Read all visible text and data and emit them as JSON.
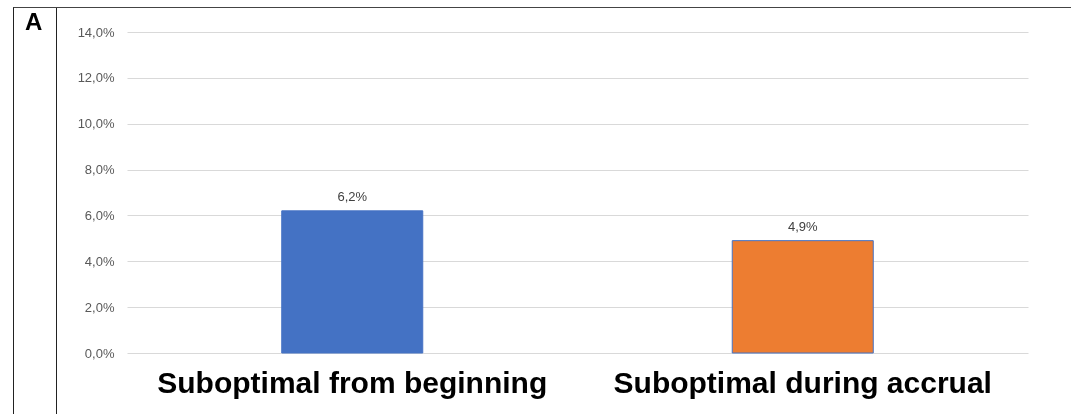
{
  "chart_data": {
    "type": "bar",
    "title": "A",
    "categories": [
      "Suboptimal from beginning",
      "Suboptimal during accrual"
    ],
    "values": [
      6.2,
      4.9
    ],
    "colors": [
      "#4472c4",
      "#ed7d31"
    ],
    "value_labels": [
      "6,2%",
      "4,9%"
    ],
    "ylim": [
      0,
      14
    ],
    "yticks": [
      {
        "value": 0,
        "label": "0,0%"
      },
      {
        "value": 2,
        "label": "2,0%"
      },
      {
        "value": 4,
        "label": "4,0%"
      },
      {
        "value": 6,
        "label": "6,0%"
      },
      {
        "value": 8,
        "label": "8,0%"
      },
      {
        "value": 10,
        "label": "10,0%"
      },
      {
        "value": 12,
        "label": "12,0%"
      },
      {
        "value": 14,
        "label": "14,0%"
      }
    ],
    "grid": "y"
  }
}
